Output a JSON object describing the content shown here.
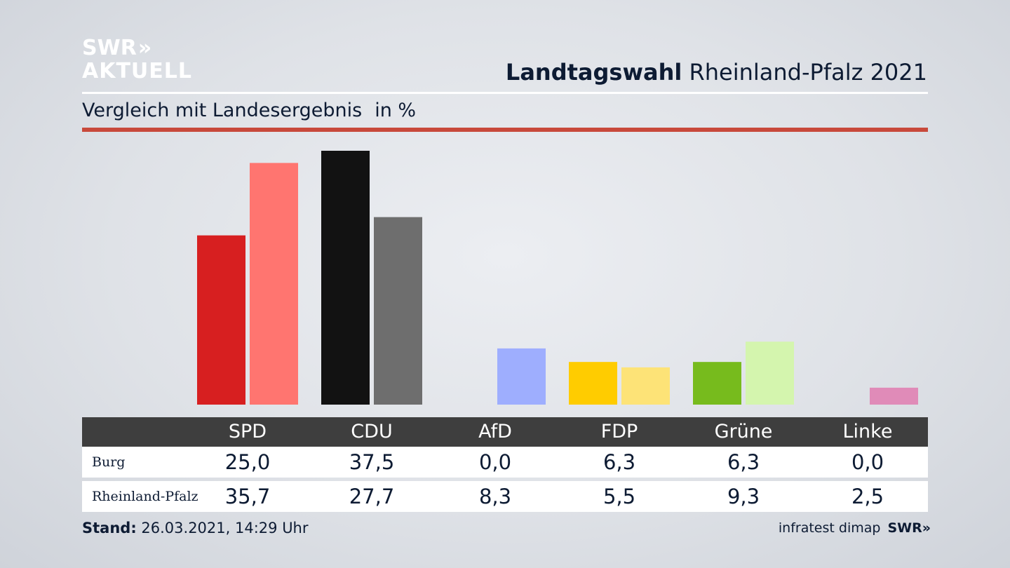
{
  "logo": {
    "line1": "SWR",
    "line2": "AKTUELL",
    "chevrons": "»"
  },
  "header": {
    "title_bold": "Landtagswahl",
    "title_rest": "Rheinland-Pfalz 2021"
  },
  "subtitle": {
    "text": "Vergleich mit Landesergebnis",
    "unit": "in %"
  },
  "colors": {
    "accent_rule": "#c8493b",
    "table_header": "#3e3e3e"
  },
  "chart_data": {
    "type": "bar",
    "categories": [
      "SPD",
      "CDU",
      "AfD",
      "FDP",
      "Grüne",
      "Linke"
    ],
    "series": [
      {
        "name": "Burg",
        "values": [
          25.0,
          37.5,
          0.0,
          6.3,
          6.3,
          0.0
        ],
        "colors": [
          "#d71f20",
          "#121212",
          "#9eaefe",
          "#ffcc00",
          "#77bb1d",
          "#d888b6"
        ]
      },
      {
        "name": "Rheinland-Pfalz",
        "values": [
          35.7,
          27.7,
          8.3,
          5.5,
          9.3,
          2.5
        ],
        "colors": [
          "#ff7570",
          "#6e6e6e",
          "#9eaefe",
          "#fde377",
          "#d4f5ae",
          "#e08bb8"
        ]
      }
    ],
    "display_values": {
      "Burg": [
        "25,0",
        "37,5",
        "0,0",
        "6,3",
        "6,3",
        "0,0"
      ],
      "Rheinland-Pfalz": [
        "35,7",
        "27,7",
        "8,3",
        "5,5",
        "9,3",
        "2,5"
      ]
    },
    "ylim": [
      0,
      37.5
    ],
    "grid": false
  },
  "footer": {
    "stand_label": "Stand:",
    "stand_value": "26.03.2021, 14:29 Uhr",
    "source": "infratest dimap",
    "source_logo": "SWR",
    "source_chevrons": "»"
  }
}
